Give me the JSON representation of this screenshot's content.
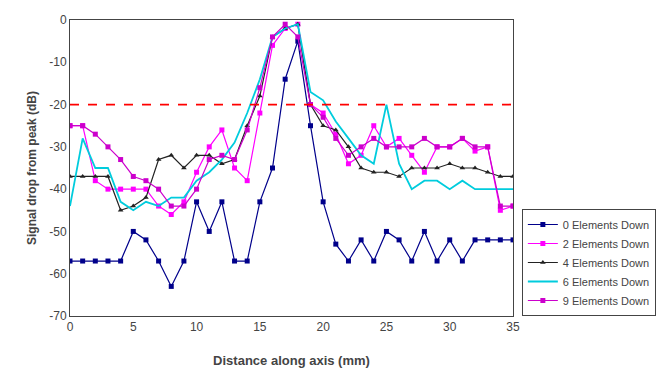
{
  "chart_data": {
    "type": "line",
    "xlabel": "Distance along axis (mm)",
    "ylabel": "Signal drop from peak (dB)",
    "x": [
      0,
      1,
      2,
      3,
      4,
      5,
      6,
      7,
      8,
      9,
      10,
      11,
      12,
      13,
      14,
      15,
      16,
      17,
      18,
      19,
      20,
      21,
      22,
      23,
      24,
      25,
      26,
      27,
      28,
      29,
      30,
      31,
      32,
      33,
      34,
      35
    ],
    "series": [
      {
        "name": "0 Elements Down",
        "color": "#00008B",
        "marker": "square",
        "line_style": "solid",
        "values": [
          -57,
          -57,
          -57,
          -57,
          -57,
          -50,
          -52,
          -57,
          -63,
          -57,
          -43,
          -50,
          -43,
          -57,
          -57,
          -43,
          -35,
          -14,
          -5,
          -25,
          -43,
          -53,
          -57,
          -52,
          -57,
          -50,
          -52,
          -57,
          -50,
          -57,
          -52,
          -57,
          -52,
          -52,
          -52,
          -52
        ]
      },
      {
        "name": "2 Elements Down",
        "color": "#FF00FF",
        "marker": "square",
        "line_style": "solid",
        "values": [
          -25,
          -25,
          -38,
          -40,
          -40,
          -40,
          -40,
          -44,
          -46,
          -43,
          -36,
          -30,
          -26,
          -35,
          -38,
          -22,
          -6,
          -2,
          -1,
          -20,
          -22,
          -27,
          -34,
          -32,
          -25,
          -30,
          -28,
          -32,
          -36,
          -30,
          -30,
          -28,
          -31,
          -30,
          -45,
          -44
        ]
      },
      {
        "name": "4 Elements Down",
        "color": "#222222",
        "marker": "triangle",
        "line_style": "solid",
        "values": [
          -37,
          -37,
          -37,
          -37,
          -45,
          -44,
          -42,
          -33,
          -32,
          -35,
          -32,
          -32,
          -34,
          -33,
          -25,
          -18,
          -4,
          -2,
          -1,
          -20,
          -25,
          -26,
          -30,
          -35,
          -36,
          -36,
          -37,
          -35,
          -35,
          -35,
          -34,
          -35,
          -35,
          -36,
          -37,
          -37
        ]
      },
      {
        "name": "6 Elements Down",
        "color": "#00CCDD",
        "marker": "none",
        "line_style": "solid",
        "values": [
          -44,
          -28,
          -35,
          -35,
          -43,
          -45,
          -43,
          -44,
          -42,
          -42,
          -38,
          -36,
          -33,
          -29,
          -22,
          -14,
          -4,
          -2,
          -1,
          -17,
          -19,
          -24,
          -28,
          -32,
          -34,
          -20,
          -34,
          -40,
          -38,
          -38,
          -40,
          -38,
          -40,
          -40,
          -40,
          -40
        ]
      },
      {
        "name": "9 Elements Down",
        "color": "#CC00CC",
        "marker": "square",
        "line_style": "solid",
        "values": [
          -25,
          -25,
          -27,
          -30,
          -33,
          -37,
          -38,
          -40,
          -44,
          -44,
          -40,
          -33,
          -32,
          -33,
          -26,
          -16,
          -4,
          -1,
          -4,
          -20,
          -23,
          -28,
          -32,
          -30,
          -28,
          -30,
          -30,
          -30,
          -28,
          -30,
          -30,
          -28,
          -30,
          -30,
          -44,
          -44
        ]
      }
    ],
    "reference_line": {
      "value": -20,
      "color": "red",
      "line_style": "dashed"
    },
    "xlim": [
      0,
      35
    ],
    "ylim": [
      -70,
      0
    ],
    "xticks": [
      0,
      5,
      10,
      15,
      20,
      25,
      30,
      35
    ],
    "yticks": [
      0,
      -10,
      -20,
      -30,
      -40,
      -50,
      -60,
      -70
    ],
    "grid": false,
    "legend": "lower right"
  }
}
